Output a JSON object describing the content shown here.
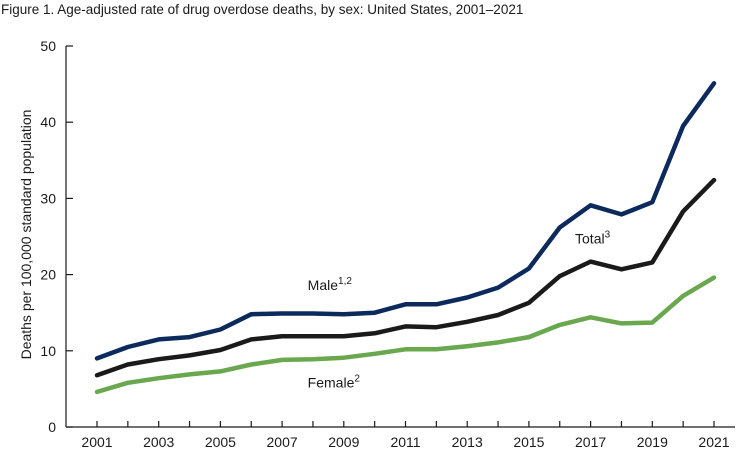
{
  "title": "Figure 1. Age-adjusted rate of drug overdose deaths, by sex: United States, 2001–2021",
  "chart_data": {
    "type": "line",
    "ylabel": "Deaths per 100,000 standard population",
    "xlabel": "",
    "ylim": [
      0,
      50
    ],
    "yticks": [
      0,
      10,
      20,
      30,
      40,
      50
    ],
    "xlim": [
      2001,
      2021
    ],
    "xticks": [
      2001,
      2003,
      2005,
      2007,
      2009,
      2011,
      2013,
      2015,
      2017,
      2019,
      2021
    ],
    "x": [
      2001,
      2002,
      2003,
      2004,
      2005,
      2006,
      2007,
      2008,
      2009,
      2010,
      2011,
      2012,
      2013,
      2014,
      2015,
      2016,
      2017,
      2018,
      2019,
      2020,
      2021
    ],
    "series": [
      {
        "name": "Male",
        "label": "Male",
        "label_sup": "1,2",
        "label_at": 2009,
        "color": "#0d2a5c",
        "values": [
          9.0,
          10.5,
          11.5,
          11.8,
          12.8,
          14.8,
          14.9,
          14.9,
          14.8,
          15.0,
          16.1,
          16.1,
          17.0,
          18.3,
          20.8,
          26.2,
          29.1,
          27.9,
          29.5,
          39.5,
          45.1
        ]
      },
      {
        "name": "Total",
        "label": "Total",
        "label_sup": "3",
        "label_at": 2017,
        "color": "#1a1a1a",
        "values": [
          6.8,
          8.2,
          8.9,
          9.4,
          10.1,
          11.5,
          11.9,
          11.9,
          11.9,
          12.3,
          13.2,
          13.1,
          13.8,
          14.7,
          16.3,
          19.8,
          21.7,
          20.7,
          21.6,
          28.3,
          32.4
        ]
      },
      {
        "name": "Female",
        "label": "Female",
        "label_sup": "2",
        "label_at": 2009,
        "color": "#6aa84f",
        "values": [
          4.6,
          5.8,
          6.4,
          6.9,
          7.3,
          8.2,
          8.8,
          8.9,
          9.1,
          9.6,
          10.2,
          10.2,
          10.6,
          11.1,
          11.8,
          13.4,
          14.4,
          13.6,
          13.7,
          17.2,
          19.6
        ]
      }
    ]
  }
}
